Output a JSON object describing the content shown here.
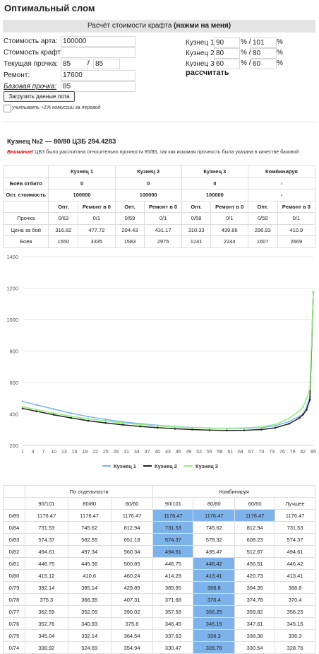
{
  "page_title": "Оптимальный слом",
  "craft_bar": {
    "text": "Расчёт стоимости крафта ",
    "bold": "(нажми на меня)"
  },
  "form": {
    "art_cost_label": "Стоимость арта:",
    "art_cost_value": "100000",
    "craft_cost_label": "Стоимость крафта:",
    "craft_cost_value": "",
    "durability_label": "Текущая прочка:",
    "durability_cur": "85",
    "durability_max": "85",
    "slash": "/",
    "repair_label": "Ремонт:",
    "repair_value": "17600",
    "base_label": "Базовая прочка:",
    "base_value": "85",
    "smiths": [
      {
        "label": "Кузнец 1:",
        "a": "90",
        "b": "101"
      },
      {
        "label": "Кузнец 2:",
        "a": "80",
        "b": "80"
      },
      {
        "label": "Кузнец 3:",
        "a": "60",
        "b": "60"
      }
    ],
    "pct": "%",
    "pct_slash": "% /",
    "calc_button": "рассчитать",
    "load_button": "Загрузить данные лота",
    "commission_label": "учитывать +1% комиссии за перевод"
  },
  "result": {
    "title": "Кузнец №2 — 80/80 ЦЗБ 294.4283",
    "warn_bold": "Внимание!",
    "warn_text": " ЦБЗ было рассчитана относительно прочности 85/85, так как искомая прочность была указана в качестве базовой"
  },
  "summary": {
    "headers": [
      "Кузнец 1",
      "Кузнец 2",
      "Кузнец 3",
      "Комбинируя"
    ],
    "row_broken": {
      "label": "Боёв отбито",
      "values": [
        "0",
        "0",
        "0",
        "-"
      ]
    },
    "row_rest": {
      "label": "Ост. стоимость",
      "values": [
        "100000",
        "100000",
        "100000",
        "-"
      ]
    },
    "sub_headers": [
      "Опт.",
      "Ремонт в 0",
      "Опт.",
      "Ремонт в 0",
      "Опт.",
      "Ремонт в 0",
      "Опт.",
      "Ремонт в 0"
    ],
    "rows": [
      {
        "label": "Прочка",
        "values": [
          "0/63",
          "0/1",
          "0/59",
          "0/1",
          "0/58",
          "0/1",
          "0/59",
          "0/1"
        ]
      },
      {
        "label": "Цена за бой",
        "values": [
          "316.82",
          "477.72",
          "294.43",
          "431.17",
          "310.33",
          "439.86",
          "296.93",
          "410.9"
        ]
      },
      {
        "label": "Боёв",
        "values": [
          "1550",
          "3335",
          "1583",
          "2975",
          "1241",
          "2244",
          "1607",
          "2669"
        ]
      }
    ]
  },
  "chart_data": {
    "type": "line",
    "title": "",
    "xlabel": "",
    "ylabel": "",
    "ylim": [
      200,
      1400
    ],
    "yticks": [
      200,
      400,
      600,
      800,
      1000,
      1200,
      1400
    ],
    "xlim": [
      1,
      85
    ],
    "xticks": [
      1,
      4,
      7,
      10,
      13,
      16,
      19,
      22,
      25,
      28,
      31,
      34,
      37,
      40,
      43,
      46,
      49,
      52,
      55,
      58,
      61,
      64,
      67,
      70,
      73,
      76,
      79,
      82,
      85
    ],
    "grid": true,
    "legend": "bottom",
    "series": [
      {
        "name": "Кузнец 1",
        "color": "#7cb5ec",
        "points": [
          [
            1,
            480
          ],
          [
            5,
            458
          ],
          [
            10,
            431
          ],
          [
            15,
            405
          ],
          [
            20,
            383
          ],
          [
            25,
            365
          ],
          [
            30,
            350
          ],
          [
            35,
            338
          ],
          [
            40,
            328
          ],
          [
            45,
            320
          ],
          [
            50,
            314
          ],
          [
            55,
            310
          ],
          [
            60,
            308
          ],
          [
            65,
            309
          ],
          [
            70,
            314
          ],
          [
            74,
            325
          ],
          [
            78,
            352
          ],
          [
            81,
            385
          ],
          [
            82,
            400
          ],
          [
            83,
            440
          ],
          [
            84,
            510
          ],
          [
            85,
            1176
          ]
        ]
      },
      {
        "name": "Кузнец 2",
        "color": "#222222",
        "points": [
          [
            1,
            435
          ],
          [
            5,
            417
          ],
          [
            10,
            395
          ],
          [
            15,
            375
          ],
          [
            20,
            357
          ],
          [
            25,
            343
          ],
          [
            30,
            331
          ],
          [
            35,
            321
          ],
          [
            40,
            313
          ],
          [
            45,
            306
          ],
          [
            50,
            301
          ],
          [
            55,
            297
          ],
          [
            60,
            295
          ],
          [
            65,
            296
          ],
          [
            70,
            301
          ],
          [
            74,
            312
          ],
          [
            78,
            338
          ],
          [
            81,
            375
          ],
          [
            82,
            396
          ],
          [
            83,
            425
          ],
          [
            84,
            490
          ],
          [
            85,
            1176
          ]
        ]
      },
      {
        "name": "Кузнец 3",
        "color": "#90ed7d",
        "points": [
          [
            1,
            445
          ],
          [
            5,
            428
          ],
          [
            10,
            406
          ],
          [
            15,
            386
          ],
          [
            20,
            369
          ],
          [
            25,
            355
          ],
          [
            30,
            343
          ],
          [
            35,
            333
          ],
          [
            40,
            325
          ],
          [
            45,
            318
          ],
          [
            50,
            313
          ],
          [
            55,
            310
          ],
          [
            60,
            309
          ],
          [
            65,
            311
          ],
          [
            70,
            318
          ],
          [
            74,
            333
          ],
          [
            78,
            372
          ],
          [
            81,
            420
          ],
          [
            82,
            445
          ],
          [
            83,
            496
          ],
          [
            84,
            561
          ],
          [
            85,
            1176
          ]
        ]
      }
    ]
  },
  "breakdown": {
    "group_left": "По отдельности",
    "group_right": "Комбинируя",
    "headers": [
      "",
      "90/101",
      "80/80",
      "60/60",
      "90/101",
      "80/80",
      "60/60",
      "Лучшее"
    ],
    "rows": [
      [
        "0/85",
        "1176.47",
        "1176.47",
        "1176.47",
        "1176.47",
        "1176.47",
        "1176.47",
        "1176.47"
      ],
      [
        "0/84",
        "731.53",
        "745.62",
        "812.94",
        "731.53",
        "745.62",
        "812.94",
        "731.53"
      ],
      [
        "0/83",
        "574.37",
        "582.55",
        "651.18",
        "574.37",
        "578.32",
        "608.23",
        "574.37"
      ],
      [
        "0/82",
        "494.61",
        "497.34",
        "560.34",
        "494.61",
        "495.47",
        "512.67",
        "494.61"
      ],
      [
        "0/81",
        "446.75",
        "445.36",
        "500.85",
        "446.75",
        "446.42",
        "456.51",
        "446.42"
      ],
      [
        "0/80",
        "415.12",
        "410.6",
        "460.24",
        "414.28",
        "413.41",
        "420.73",
        "413.41"
      ],
      [
        "0/79",
        "392.14",
        "385.14",
        "429.89",
        "389.95",
        "388.8",
        "394.35",
        "388.8"
      ],
      [
        "0/78",
        "375.3",
        "366.35",
        "407.31",
        "371.68",
        "370.4",
        "374.78",
        "370.4"
      ],
      [
        "0/77",
        "362.59",
        "352.05",
        "390.02",
        "357.58",
        "356.25",
        "359.82",
        "356.25"
      ],
      [
        "0/76",
        "352.76",
        "340.93",
        "375.8",
        "346.49",
        "345.15",
        "347.61",
        "345.15"
      ],
      [
        "0/75",
        "345.04",
        "332.14",
        "364.54",
        "337.63",
        "336.3",
        "338.38",
        "336.3"
      ],
      [
        "0/74",
        "338.92",
        "324.69",
        "354.94",
        "330.47",
        "328.76",
        "330.54",
        "328.76"
      ]
    ],
    "highlight": [
      [
        0,
        0,
        1,
        2
      ],
      [
        1,
        0
      ],
      [
        2,
        0
      ],
      [
        3,
        0
      ],
      [
        4,
        1
      ],
      [
        5,
        1
      ],
      [
        6,
        1
      ],
      [
        7,
        1
      ],
      [
        8,
        1
      ],
      [
        9,
        1
      ],
      [
        10,
        1
      ],
      [
        11,
        1
      ]
    ]
  }
}
